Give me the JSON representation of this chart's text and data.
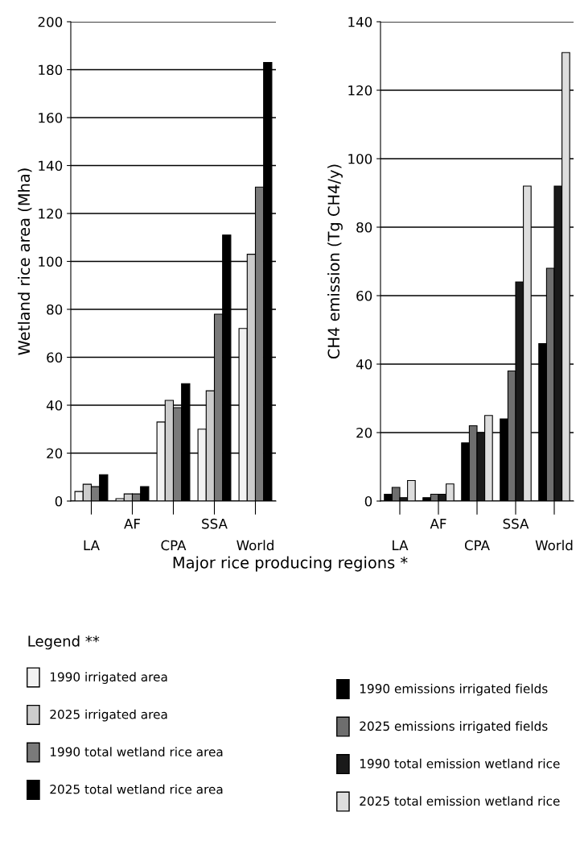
{
  "chart_data": [
    {
      "type": "bar",
      "categories": [
        "LA",
        "AF",
        "CPA",
        "SSA",
        "World"
      ],
      "ylabel": "Wetland rice area (Mha)",
      "xlabel": "Major rice producing regions *",
      "legend_title": "Legend **",
      "legend": "bottom left",
      "grid": "y",
      "ylim": [
        0,
        200
      ],
      "yticks": [
        0,
        20,
        40,
        60,
        80,
        100,
        120,
        140,
        160,
        180,
        200
      ],
      "series": [
        {
          "name": "1990 irrigated area",
          "color": "#f2f2f2",
          "values": [
            4,
            1,
            33,
            30,
            72
          ]
        },
        {
          "name": "2025 irrigated area",
          "color": "#cccccc",
          "values": [
            7,
            3,
            42,
            46,
            103
          ]
        },
        {
          "name": "1990 total wetland rice area",
          "color": "#7a7a7a",
          "values": [
            6,
            3,
            39,
            78,
            131
          ]
        },
        {
          "name": "2025 total wetland rice area",
          "color": "#000000",
          "values": [
            11,
            6,
            49,
            111,
            183
          ]
        }
      ]
    },
    {
      "type": "bar",
      "categories": [
        "LA",
        "AF",
        "CPA",
        "SSA",
        "World"
      ],
      "ylabel": "CH4 emission (Tg CH4/y)",
      "legend": "bottom left",
      "grid": "y",
      "ylim": [
        0,
        140
      ],
      "yticks": [
        0,
        20,
        40,
        60,
        80,
        100,
        120,
        140
      ],
      "series": [
        {
          "name": "1990 emissions irrigated fields",
          "color": "#000000",
          "values": [
            2,
            1,
            17,
            24,
            46
          ]
        },
        {
          "name": "2025 emissions irrigated fields",
          "color": "#6e6e6e",
          "values": [
            4,
            2,
            22,
            38,
            68
          ]
        },
        {
          "name": "1990 total emission wetland rice",
          "color": "#1a1a1a",
          "values": [
            1,
            2,
            20,
            64,
            92
          ]
        },
        {
          "name": "2025 total emission wetland rice",
          "color": "#dddddd",
          "values": [
            6,
            5,
            25,
            92,
            131
          ]
        }
      ]
    }
  ]
}
